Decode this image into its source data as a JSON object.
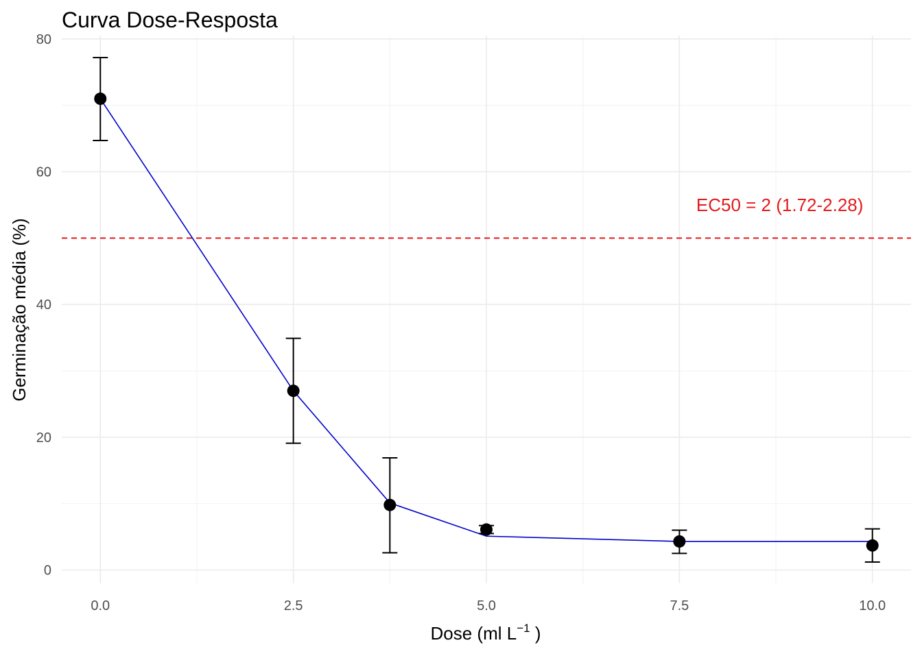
{
  "chart_data": {
    "type": "line",
    "title": "Curva Dose-Resposta",
    "xlabel": "Dose (ml L",
    "xlabel_sup": "−1",
    "xlabel_end": " )",
    "ylabel": "Germinação média (%)",
    "xlim": [
      -0.5,
      10.5
    ],
    "ylim": [
      -2,
      80.5
    ],
    "x_ticks": [
      0,
      2.5,
      5,
      7.5,
      10
    ],
    "x_tick_labels": [
      "0.0",
      "2.5",
      "5.0",
      "7.5",
      "10.0"
    ],
    "y_ticks": [
      0,
      20,
      40,
      60,
      80
    ],
    "y_tick_labels": [
      "0",
      "20",
      "40",
      "60",
      "80"
    ],
    "grid": true,
    "points": {
      "x": [
        0,
        2.5,
        3.75,
        5,
        7.5,
        10
      ],
      "y": [
        71,
        27,
        9.8,
        6.1,
        4.3,
        3.7
      ],
      "ymin": [
        64.7,
        19.1,
        2.6,
        5.5,
        2.5,
        1.2
      ],
      "ymax": [
        77.2,
        34.9,
        16.9,
        6.7,
        6.0,
        6.2
      ],
      "color": "#000000"
    },
    "fit_line": {
      "x": [
        0,
        2.5,
        3.75,
        5,
        7.5,
        10
      ],
      "y": [
        71,
        27,
        10.1,
        5.1,
        4.3,
        4.3
      ],
      "color": "#0000cd"
    },
    "reference_line": {
      "y": 50,
      "color": "#e31a1c",
      "style": "dashed"
    },
    "annotation": {
      "text": "EC50 = 2 (1.72-2.28)",
      "x": 8.8,
      "y": 55,
      "color": "#e31a1c"
    }
  }
}
